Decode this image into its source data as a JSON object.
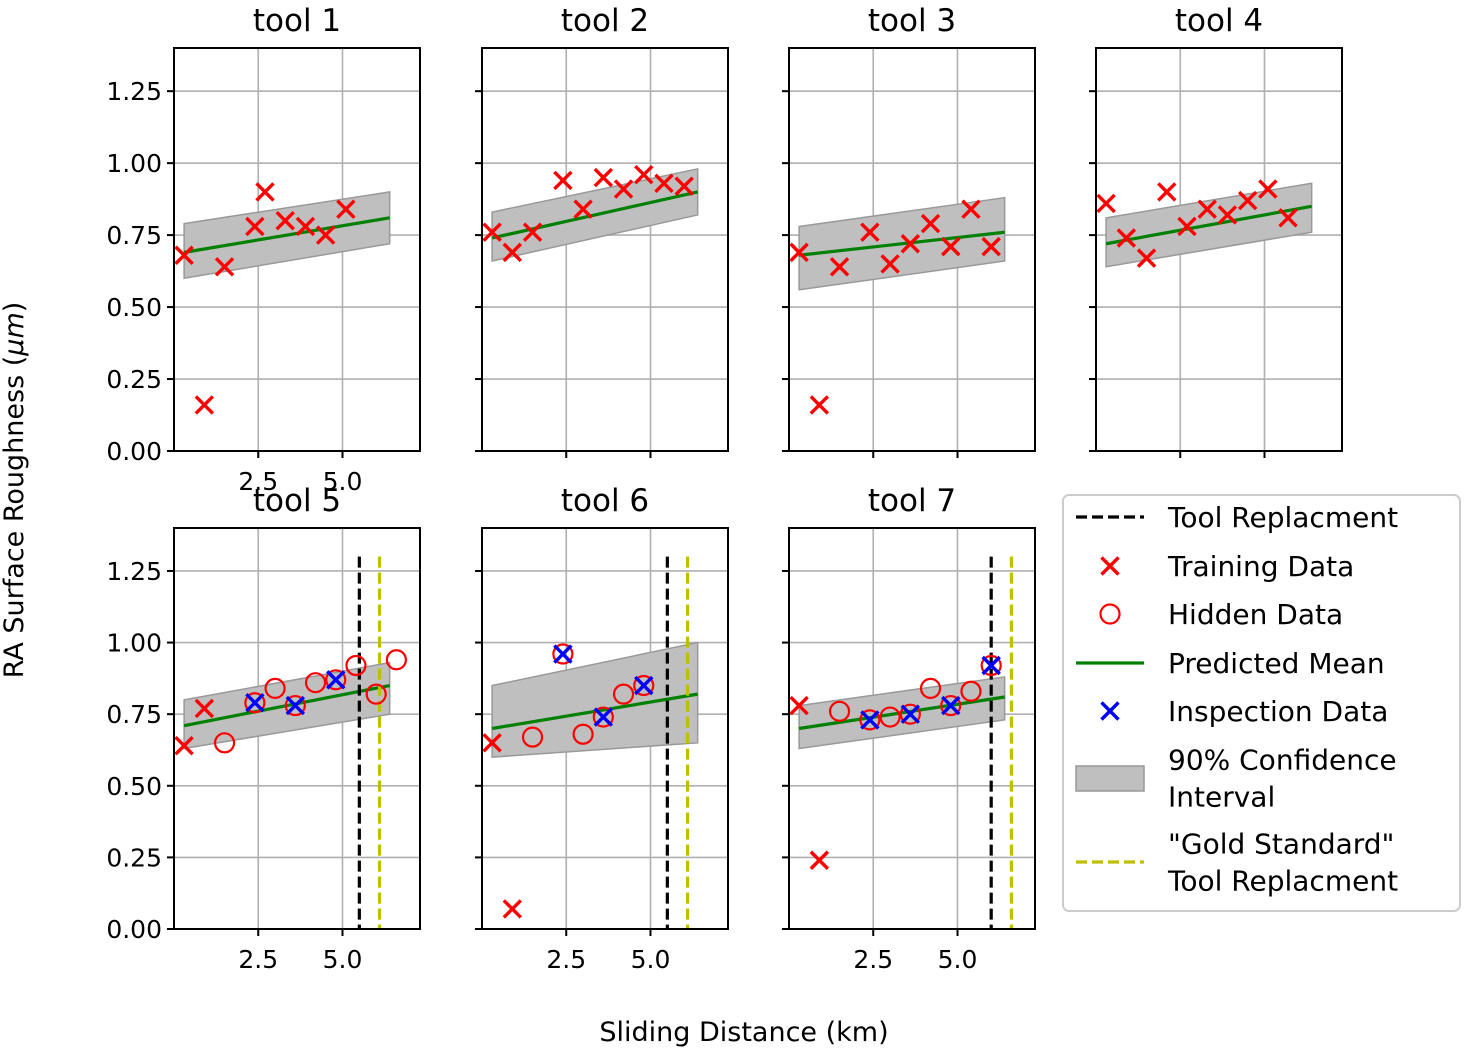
{
  "figure": {
    "xlabel": "Sliding Distance (km)",
    "ylabel_prefix": "RA Surface Roughness (",
    "ylabel_unit": "μm",
    "ylabel_suffix": ")"
  },
  "legend": {
    "entries": [
      {
        "key": "replacement",
        "label_lines": [
          "Tool Replacment"
        ]
      },
      {
        "key": "training",
        "label_lines": [
          "Training Data"
        ]
      },
      {
        "key": "hidden",
        "label_lines": [
          "Hidden Data"
        ]
      },
      {
        "key": "mean",
        "label_lines": [
          "Predicted Mean"
        ]
      },
      {
        "key": "inspection",
        "label_lines": [
          "Inspection Data"
        ]
      },
      {
        "key": "ci",
        "label_lines": [
          "90% Confidence",
          " Interval"
        ]
      },
      {
        "key": "gold",
        "label_lines": [
          "\"Gold Standard\"",
          " Tool Replacment"
        ]
      }
    ],
    "placement": "bottom-right"
  },
  "colors": {
    "training": "#ff0000",
    "hidden": "#ff0000",
    "mean": "#008000",
    "inspection": "#0000ff",
    "ci_fill": "#bfbfbf",
    "ci_edge": "#999999",
    "replacement": "#000000",
    "gold": "#bfbf00",
    "grid": "#b0b0b0"
  },
  "chart_data": [
    {
      "type": "scatter",
      "title": "tool 1",
      "xlim": [
        0,
        7.3
      ],
      "ylim": [
        0,
        1.4
      ],
      "grid": true,
      "xticks": [
        2.5,
        5.0
      ],
      "xtick_labels": [
        "2.5",
        "5.0"
      ],
      "yticks": [
        0,
        0.25,
        0.5,
        0.75,
        1.0,
        1.25
      ],
      "ytick_labels": [
        "0.00",
        "0.25",
        "0.50",
        "0.75",
        "1.00",
        "1.25"
      ],
      "training": {
        "x": [
          0.3,
          0.9,
          1.5,
          2.4,
          2.7,
          3.3,
          3.9,
          4.5,
          5.1
        ],
        "y": [
          0.68,
          0.16,
          0.64,
          0.78,
          0.9,
          0.8,
          0.78,
          0.75,
          0.84
        ]
      },
      "hidden": {
        "x": [],
        "y": []
      },
      "inspection": {
        "x": [],
        "y": []
      },
      "mean": {
        "x": [
          0.3,
          6.4
        ],
        "y": [
          0.69,
          0.81
        ]
      },
      "ci": {
        "x": [
          0.3,
          6.4
        ],
        "lower": [
          0.6,
          0.72
        ],
        "upper": [
          0.79,
          0.9
        ]
      },
      "replacement_x": null,
      "gold_x": null
    },
    {
      "type": "scatter",
      "title": "tool 2",
      "xlim": [
        0,
        7.3
      ],
      "ylim": [
        0,
        1.4
      ],
      "grid": true,
      "xticks": [
        2.5,
        5.0
      ],
      "xtick_labels": [
        "",
        ""
      ],
      "yticks": [
        0,
        0.25,
        0.5,
        0.75,
        1.0,
        1.25
      ],
      "ytick_labels": [
        "",
        "",
        "",
        "",
        "",
        ""
      ],
      "training": {
        "x": [
          0.3,
          0.9,
          1.5,
          2.4,
          3.0,
          3.6,
          4.2,
          4.8,
          5.4,
          6.0
        ],
        "y": [
          0.76,
          0.69,
          0.76,
          0.94,
          0.84,
          0.95,
          0.91,
          0.96,
          0.93,
          0.92
        ]
      },
      "hidden": {
        "x": [],
        "y": []
      },
      "inspection": {
        "x": [],
        "y": []
      },
      "mean": {
        "x": [
          0.3,
          6.4
        ],
        "y": [
          0.74,
          0.9
        ]
      },
      "ci": {
        "x": [
          0.3,
          6.4
        ],
        "lower": [
          0.66,
          0.82
        ],
        "upper": [
          0.83,
          0.98
        ]
      },
      "replacement_x": null,
      "gold_x": null
    },
    {
      "type": "scatter",
      "title": "tool 3",
      "xlim": [
        0,
        7.3
      ],
      "ylim": [
        0,
        1.4
      ],
      "grid": true,
      "xticks": [
        2.5,
        5.0
      ],
      "xtick_labels": [
        "",
        ""
      ],
      "yticks": [
        0,
        0.25,
        0.5,
        0.75,
        1.0,
        1.25
      ],
      "ytick_labels": [
        "",
        "",
        "",
        "",
        "",
        ""
      ],
      "training": {
        "x": [
          0.3,
          0.9,
          1.5,
          2.4,
          3.0,
          3.6,
          4.2,
          4.8,
          5.4,
          6.0
        ],
        "y": [
          0.69,
          0.16,
          0.64,
          0.76,
          0.65,
          0.72,
          0.79,
          0.71,
          0.84,
          0.71
        ]
      },
      "hidden": {
        "x": [],
        "y": []
      },
      "inspection": {
        "x": [],
        "y": []
      },
      "mean": {
        "x": [
          0.3,
          6.4
        ],
        "y": [
          0.68,
          0.76
        ]
      },
      "ci": {
        "x": [
          0.3,
          6.4
        ],
        "lower": [
          0.56,
          0.66
        ],
        "upper": [
          0.78,
          0.88
        ]
      },
      "replacement_x": null,
      "gold_x": null
    },
    {
      "type": "scatter",
      "title": "tool 4",
      "xlim": [
        0,
        7.3
      ],
      "ylim": [
        0,
        1.4
      ],
      "grid": true,
      "xticks": [
        2.5,
        5.0
      ],
      "xtick_labels": [
        "",
        ""
      ],
      "yticks": [
        0,
        0.25,
        0.5,
        0.75,
        1.0,
        1.25
      ],
      "ytick_labels": [
        "",
        "",
        "",
        "",
        "",
        ""
      ],
      "training": {
        "x": [
          0.3,
          0.9,
          1.5,
          2.1,
          2.7,
          3.3,
          3.9,
          4.5,
          5.1,
          5.7
        ],
        "y": [
          0.86,
          0.74,
          0.67,
          0.9,
          0.78,
          0.84,
          0.82,
          0.87,
          0.91,
          0.81
        ]
      },
      "hidden": {
        "x": [],
        "y": []
      },
      "inspection": {
        "x": [],
        "y": []
      },
      "mean": {
        "x": [
          0.3,
          6.4
        ],
        "y": [
          0.72,
          0.85
        ]
      },
      "ci": {
        "x": [
          0.3,
          6.4
        ],
        "lower": [
          0.64,
          0.76
        ],
        "upper": [
          0.81,
          0.93
        ]
      },
      "replacement_x": null,
      "gold_x": null
    },
    {
      "type": "scatter",
      "title": "tool 5",
      "xlim": [
        0,
        7.3
      ],
      "ylim": [
        0,
        1.4
      ],
      "grid": true,
      "xticks": [
        2.5,
        5.0
      ],
      "xtick_labels": [
        "2.5",
        "5.0"
      ],
      "yticks": [
        0,
        0.25,
        0.5,
        0.75,
        1.0,
        1.25
      ],
      "ytick_labels": [
        "0.00",
        "0.25",
        "0.50",
        "0.75",
        "1.00",
        "1.25"
      ],
      "training": {
        "x": [
          0.3,
          0.9
        ],
        "y": [
          0.64,
          0.77
        ]
      },
      "hidden": {
        "x": [
          1.5,
          2.4,
          3.0,
          3.6,
          4.2,
          4.8,
          5.4,
          6.0,
          6.6
        ],
        "y": [
          0.65,
          0.79,
          0.84,
          0.78,
          0.86,
          0.87,
          0.92,
          0.82,
          0.94
        ]
      },
      "inspection": {
        "x": [
          2.4,
          3.6,
          4.8
        ],
        "y": [
          0.79,
          0.78,
          0.87
        ]
      },
      "mean": {
        "x": [
          0.3,
          6.4
        ],
        "y": [
          0.71,
          0.85
        ]
      },
      "ci": {
        "x": [
          0.3,
          6.4
        ],
        "lower": [
          0.63,
          0.75
        ],
        "upper": [
          0.8,
          0.93
        ]
      },
      "replacement_x": 5.5,
      "gold_x": 6.1
    },
    {
      "type": "scatter",
      "title": "tool 6",
      "xlim": [
        0,
        7.3
      ],
      "ylim": [
        0,
        1.4
      ],
      "grid": true,
      "xticks": [
        2.5,
        5.0
      ],
      "xtick_labels": [
        "2.5",
        "5.0"
      ],
      "yticks": [
        0,
        0.25,
        0.5,
        0.75,
        1.0,
        1.25
      ],
      "ytick_labels": [
        "",
        "",
        "",
        "",
        "",
        ""
      ],
      "training": {
        "x": [
          0.3,
          0.9
        ],
        "y": [
          0.65,
          0.07
        ]
      },
      "hidden": {
        "x": [
          1.5,
          2.4,
          3.0,
          3.6,
          4.2,
          4.8
        ],
        "y": [
          0.67,
          0.96,
          0.68,
          0.74,
          0.82,
          0.85
        ]
      },
      "inspection": {
        "x": [
          2.4,
          3.6,
          4.8
        ],
        "y": [
          0.96,
          0.74,
          0.85
        ]
      },
      "mean": {
        "x": [
          0.3,
          6.4
        ],
        "y": [
          0.7,
          0.82
        ]
      },
      "ci": {
        "x": [
          0.3,
          6.4
        ],
        "lower": [
          0.6,
          0.65
        ],
        "upper": [
          0.85,
          1.0
        ]
      },
      "replacement_x": 5.5,
      "gold_x": 6.1
    },
    {
      "type": "scatter",
      "title": "tool 7",
      "xlim": [
        0,
        7.3
      ],
      "ylim": [
        0,
        1.4
      ],
      "grid": true,
      "xticks": [
        2.5,
        5.0
      ],
      "xtick_labels": [
        "2.5",
        "5.0"
      ],
      "yticks": [
        0,
        0.25,
        0.5,
        0.75,
        1.0,
        1.25
      ],
      "ytick_labels": [
        "",
        "",
        "",
        "",
        "",
        ""
      ],
      "training": {
        "x": [
          0.3,
          0.9
        ],
        "y": [
          0.78,
          0.24
        ]
      },
      "hidden": {
        "x": [
          1.5,
          2.4,
          3.0,
          3.6,
          4.2,
          4.8,
          5.4,
          6.0
        ],
        "y": [
          0.76,
          0.73,
          0.74,
          0.75,
          0.84,
          0.78,
          0.83,
          0.92
        ]
      },
      "inspection": {
        "x": [
          2.4,
          3.6,
          4.8,
          6.0
        ],
        "y": [
          0.73,
          0.75,
          0.78,
          0.92
        ]
      },
      "mean": {
        "x": [
          0.3,
          6.4
        ],
        "y": [
          0.7,
          0.81
        ]
      },
      "ci": {
        "x": [
          0.3,
          6.4
        ],
        "lower": [
          0.63,
          0.73
        ],
        "upper": [
          0.78,
          0.88
        ]
      },
      "replacement_x": 6.0,
      "gold_x": 6.6
    }
  ]
}
